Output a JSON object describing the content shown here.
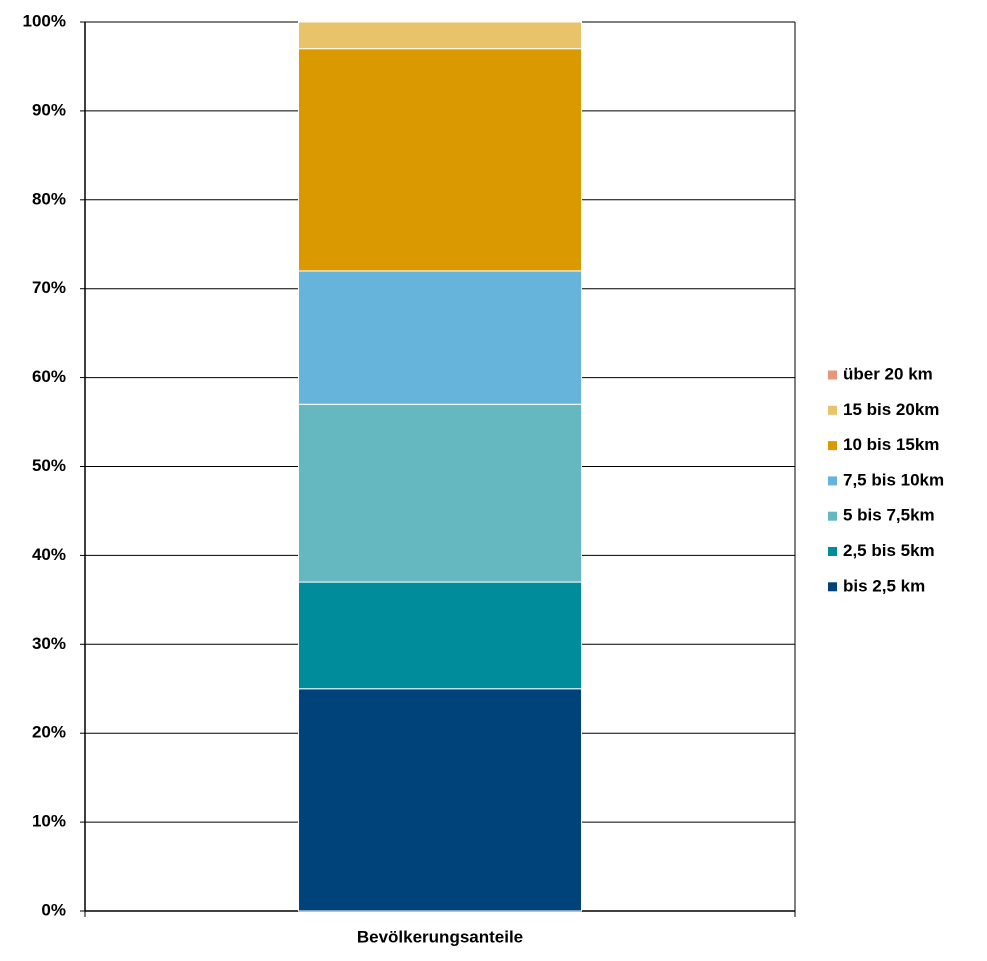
{
  "chart_data": {
    "type": "stacked_bar",
    "categories": [
      "Bevölkerungsanteile"
    ],
    "series": [
      {
        "name": "bis 2,5 km",
        "color": "#00427a",
        "values": [
          25
        ]
      },
      {
        "name": "2,5 bis 5km",
        "color": "#008c9a",
        "values": [
          12
        ]
      },
      {
        "name": "5 bis 7,5km",
        "color": "#66b8c0",
        "values": [
          20
        ]
      },
      {
        "name": "7,5 bis 10km",
        "color": "#66b3dc",
        "values": [
          15
        ]
      },
      {
        "name": "10 bis 15km",
        "color": "#db9900",
        "values": [
          25
        ]
      },
      {
        "name": "15 bis 20km",
        "color": "#e8c36a",
        "values": [
          3
        ]
      },
      {
        "name": "über 20 km",
        "color": "#e8967a",
        "values": [
          0
        ]
      }
    ],
    "ylim": [
      0,
      100
    ],
    "yticks": [
      {
        "value": 0,
        "label": "0%"
      },
      {
        "value": 10,
        "label": "10%"
      },
      {
        "value": 20,
        "label": "20%"
      },
      {
        "value": 30,
        "label": "30%"
      },
      {
        "value": 40,
        "label": "40%"
      },
      {
        "value": 50,
        "label": "50%"
      },
      {
        "value": 60,
        "label": "60%"
      },
      {
        "value": 70,
        "label": "70%"
      },
      {
        "value": 80,
        "label": "80%"
      },
      {
        "value": 90,
        "label": "90%"
      },
      {
        "value": 100,
        "label": "100%"
      }
    ],
    "grid": true,
    "legend": "right"
  }
}
